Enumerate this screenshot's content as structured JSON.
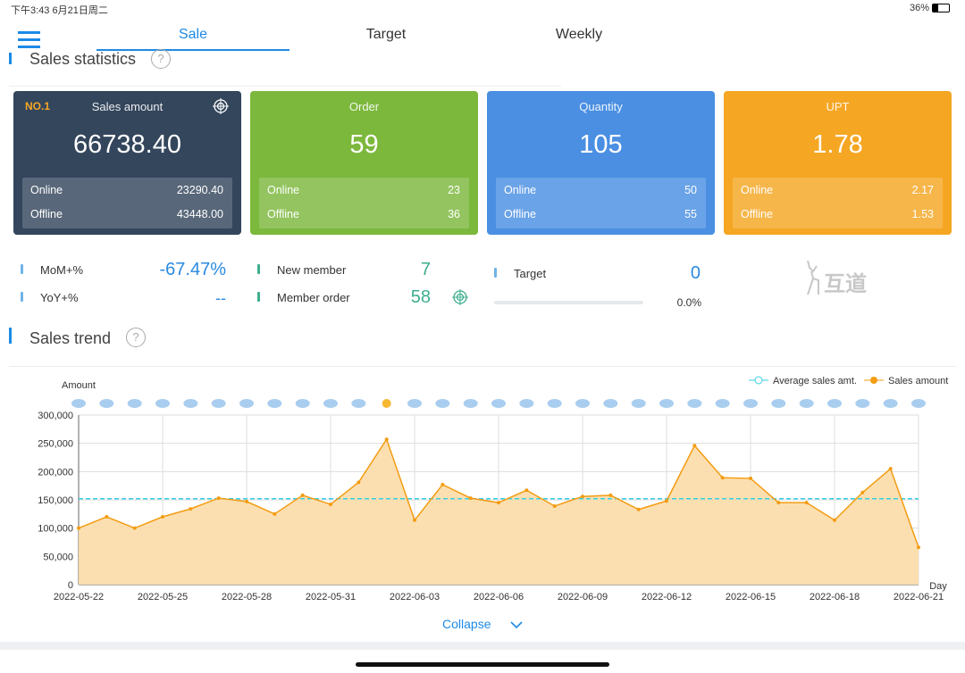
{
  "status_bar": {
    "time": "下午3:43  6月21日周二",
    "battery": "36%"
  },
  "tabs": [
    "Sale",
    "Target",
    "Weekly"
  ],
  "sales_statistics": {
    "title": "Sales statistics"
  },
  "cards": [
    {
      "badge": "NO.1",
      "title": "Sales amount",
      "value": "66738.40",
      "online_label": "Online",
      "online": "23290.40",
      "offline_label": "Offline",
      "offline": "43448.00",
      "color": "#34465c"
    },
    {
      "title": "Order",
      "value": "59",
      "online_label": "Online",
      "online": "23",
      "offline_label": "Offline",
      "offline": "36",
      "color": "#7cb83c"
    },
    {
      "title": "Quantity",
      "value": "105",
      "online_label": "Online",
      "online": "50",
      "offline_label": "Offline",
      "offline": "55",
      "color": "#4a8fe2"
    },
    {
      "title": "UPT",
      "value": "1.78",
      "online_label": "Online",
      "online": "2.17",
      "offline_label": "Offline",
      "offline": "1.53",
      "color": "#f5a623"
    }
  ],
  "stats": {
    "mom_label": "MoM+%",
    "mom": "-67.47%",
    "yoy_label": "YoY+%",
    "yoy": "--",
    "new_member_label": "New member",
    "new_member": "7",
    "member_order_label": "Member order",
    "member_order": "58",
    "target_label": "Target",
    "target": "0",
    "target_progress": "0.0%",
    "logo": "互道"
  },
  "sales_trend": {
    "title": "Sales trend",
    "collapse": "Collapse"
  },
  "chart_data": {
    "type": "line",
    "ylabel": "Amount",
    "xlabel": "Day",
    "categories": [
      "2022-05-22",
      null,
      null,
      "2022-05-25",
      null,
      null,
      "2022-05-28",
      null,
      null,
      "2022-05-31",
      null,
      null,
      "2022-06-03",
      null,
      null,
      "2022-06-06",
      null,
      null,
      "2022-06-09",
      null,
      null,
      "2022-06-12",
      null,
      null,
      "2022-06-15",
      null,
      null,
      "2022-06-18",
      null,
      null,
      "2022-06-21"
    ],
    "series": [
      {
        "name": "Sales amount",
        "color": "#f39c12",
        "values": [
          100000,
          120000,
          100000,
          120000,
          134000,
          153000,
          147000,
          125000,
          158000,
          142000,
          181000,
          257000,
          114000,
          177000,
          153000,
          145000,
          167000,
          139000,
          156000,
          158000,
          133000,
          148000,
          246000,
          189000,
          188000,
          145000,
          145000,
          114000,
          163000,
          205000,
          66000
        ]
      }
    ],
    "average_line": {
      "name": "Average sales amt.",
      "color": "#35d0e6",
      "value": 152000
    },
    "ylim": [
      0,
      300000
    ],
    "yticks": [
      0,
      {
        "value": 50000,
        "label": "50,000"
      },
      {
        "value": 100000,
        "label": "100,000"
      },
      {
        "value": 150000,
        "label": "150,000"
      },
      {
        "value": 200000,
        "label": "200,000"
      },
      {
        "value": 250000,
        "label": "250,000"
      },
      {
        "value": 300000,
        "label": "300,000"
      }
    ],
    "grid": true,
    "legend": "top-right"
  }
}
